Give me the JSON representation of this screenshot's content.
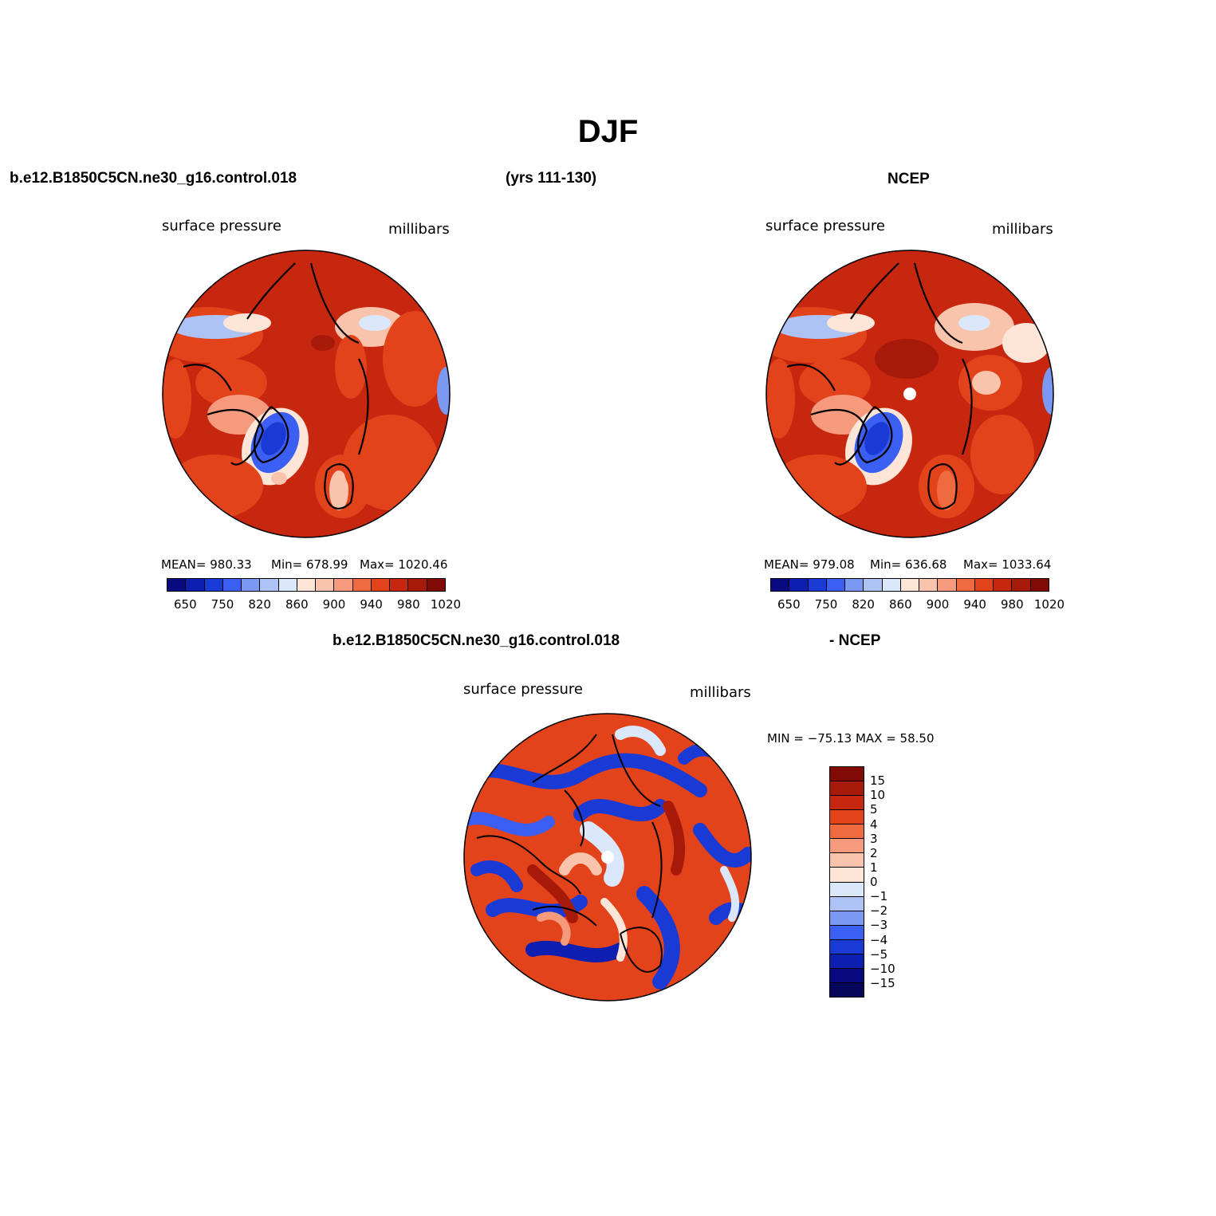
{
  "title": "DJF",
  "top_left": {
    "case_name": "b.e12.B1850C5CN.ne30_g16.control.018",
    "years": "(yrs 111-130)",
    "field": "surface pressure",
    "units": "millibars",
    "stats": {
      "mean": "MEAN= 980.33",
      "min": "Min= 678.99",
      "max": "Max= 1020.46"
    }
  },
  "top_right": {
    "case_name": "NCEP",
    "field": "surface pressure",
    "units": "millibars",
    "stats": {
      "mean": "MEAN= 979.08",
      "min": "Min= 636.68",
      "max": "Max= 1033.64"
    }
  },
  "bottom": {
    "case_name": "b.e12.B1850C5CN.ne30_g16.control.018",
    "minus_label": "- NCEP",
    "field": "surface pressure",
    "units": "millibars",
    "minmax": "MIN = −75.13 MAX =   58.50"
  },
  "colorbar_horizontal": {
    "labels": [
      "650",
      "750",
      "820",
      "860",
      "900",
      "940",
      "980",
      "1020"
    ],
    "colors": [
      "#0a0a80",
      "#0d1fb0",
      "#1a3ad6",
      "#3a5ff2",
      "#7b99f2",
      "#aec3f5",
      "#dbe8fb",
      "#fde6d8",
      "#fac3ab",
      "#f59a7c",
      "#f06a3f",
      "#e3431b",
      "#c8270f",
      "#a71a0a",
      "#820a05"
    ]
  },
  "colorbar_vertical": {
    "labels": [
      "15",
      "10",
      "5",
      "4",
      "3",
      "2",
      "1",
      "0",
      "−1",
      "−2",
      "−3",
      "−4",
      "−5",
      "−10",
      "−15"
    ],
    "colors": [
      "#820a05",
      "#a71a0a",
      "#c8270f",
      "#e3431b",
      "#f06a3f",
      "#f59a7c",
      "#fac3ab",
      "#fde6d8",
      "#dbe8fb",
      "#aec3f5",
      "#7b99f2",
      "#3a5ff2",
      "#1a3ad6",
      "#0d1fb0",
      "#0a0a80",
      "#06065a"
    ]
  }
}
